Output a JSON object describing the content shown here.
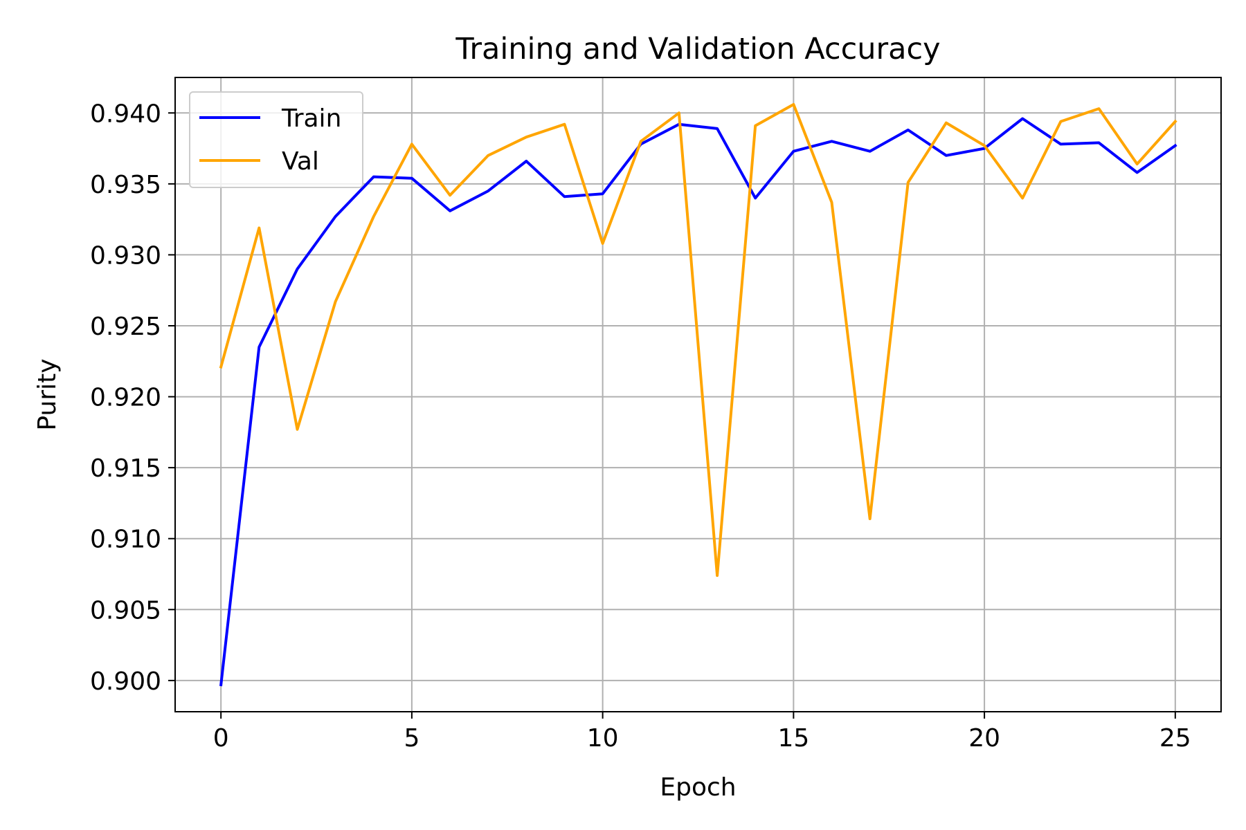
{
  "chart_data": {
    "type": "line",
    "title": "Training and Validation Accuracy",
    "xlabel": "Epoch",
    "ylabel": "Purity",
    "xlim": [
      -1.2,
      26.2
    ],
    "ylim": [
      0.8978,
      0.9425
    ],
    "xticks": [
      0,
      5,
      10,
      15,
      20,
      25
    ],
    "yticks": [
      0.9,
      0.905,
      0.91,
      0.915,
      0.92,
      0.925,
      0.93,
      0.935,
      0.94
    ],
    "grid": true,
    "legend_position": "upper-left",
    "x": [
      0,
      1,
      2,
      3,
      4,
      5,
      6,
      7,
      8,
      9,
      10,
      11,
      12,
      13,
      14,
      15,
      16,
      17,
      18,
      19,
      20,
      21,
      22,
      23,
      24,
      25
    ],
    "series": [
      {
        "name": "Train",
        "color": "#0000ff",
        "values": [
          0.8997,
          0.9235,
          0.929,
          0.9327,
          0.9355,
          0.9354,
          0.9331,
          0.9345,
          0.9366,
          0.9341,
          0.9343,
          0.9378,
          0.9392,
          0.9389,
          0.934,
          0.9373,
          0.938,
          0.9373,
          0.9388,
          0.937,
          0.9375,
          0.9396,
          0.9378,
          0.9379,
          0.9358,
          0.9377
        ]
      },
      {
        "name": "Val",
        "color": "#ffa500",
        "values": [
          0.9221,
          0.9319,
          0.9177,
          0.9267,
          0.9327,
          0.9378,
          0.9342,
          0.937,
          0.9383,
          0.9392,
          0.9308,
          0.938,
          0.94,
          0.9074,
          0.9391,
          0.9406,
          0.9337,
          0.9114,
          0.9351,
          0.9393,
          0.9377,
          0.934,
          0.9394,
          0.9403,
          0.9364,
          0.9394
        ]
      }
    ]
  }
}
